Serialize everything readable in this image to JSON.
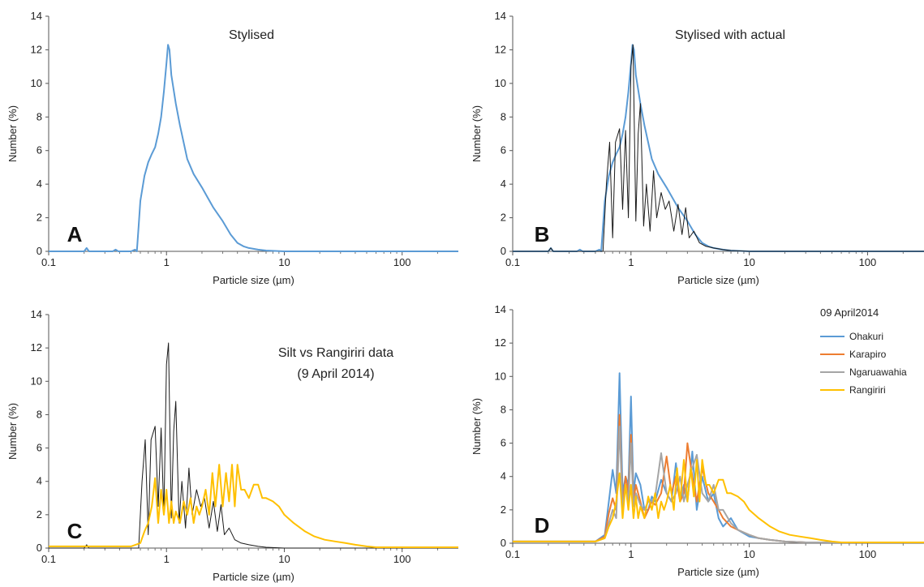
{
  "figure": {
    "title": ""
  },
  "colors": {
    "stylised": "#5b9bd5",
    "actual": "#1a1a1a",
    "ohakuri": "#5b9bd5",
    "karapiro": "#ed7d31",
    "ngaruawahia": "#a5a5a5",
    "rangiriri": "#ffc000"
  },
  "chart_data": [
    {
      "panel": "A",
      "type": "line",
      "title": "Stylised",
      "xlabel": "Particle size (µm)",
      "ylabel": "Number (%)",
      "xscale": "log",
      "xlim": [
        0.1,
        300
      ],
      "ylim": [
        0,
        14
      ],
      "xticks": [
        "0.1",
        "1",
        "10",
        "100"
      ],
      "yticks": [
        "0",
        "2",
        "4",
        "6",
        "8",
        "10",
        "12",
        "14"
      ],
      "legend": "none",
      "series": [
        {
          "color_key": "stylised",
          "x": [
            0.1,
            0.2,
            0.21,
            0.22,
            0.35,
            0.37,
            0.39,
            0.5,
            0.54,
            0.56,
            0.58,
            0.6,
            0.65,
            0.7,
            0.75,
            0.8,
            0.85,
            0.9,
            0.95,
            1.0,
            1.03,
            1.06,
            1.1,
            1.2,
            1.3,
            1.5,
            1.7,
            2.0,
            2.5,
            3.0,
            3.5,
            4.0,
            4.5,
            5.0,
            6.0,
            7.0,
            10,
            20,
            50,
            100,
            300
          ],
          "y": [
            0,
            0,
            0.2,
            0,
            0,
            0.1,
            0,
            0,
            0.1,
            0,
            1.5,
            3.0,
            4.5,
            5.3,
            5.8,
            6.2,
            7.0,
            8.0,
            9.5,
            11.2,
            12.3,
            12.0,
            10.5,
            8.8,
            7.5,
            5.5,
            4.6,
            3.8,
            2.6,
            1.8,
            1.0,
            0.5,
            0.3,
            0.2,
            0.1,
            0.05,
            0,
            0,
            0,
            0,
            0
          ]
        }
      ]
    },
    {
      "panel": "B",
      "type": "line",
      "title": "Stylised with actual",
      "xlabel": "Particle size (µm)",
      "ylabel": "Number (%)",
      "xscale": "log",
      "xlim": [
        0.1,
        300
      ],
      "ylim": [
        0,
        14
      ],
      "xticks": [
        "0.1",
        "1",
        "10",
        "100"
      ],
      "yticks": [
        "0",
        "2",
        "4",
        "6",
        "8",
        "10",
        "12",
        "14"
      ],
      "legend": "none",
      "series": [
        {
          "color_key": "stylised",
          "x": [
            0.1,
            0.2,
            0.21,
            0.22,
            0.35,
            0.37,
            0.39,
            0.5,
            0.54,
            0.56,
            0.58,
            0.6,
            0.65,
            0.7,
            0.75,
            0.8,
            0.85,
            0.9,
            0.95,
            1.0,
            1.03,
            1.06,
            1.1,
            1.2,
            1.3,
            1.5,
            1.7,
            2.0,
            2.5,
            3.0,
            3.5,
            4.0,
            4.5,
            5.0,
            6.0,
            7.0,
            10,
            20,
            50,
            100,
            300
          ],
          "y": [
            0,
            0,
            0.2,
            0,
            0,
            0.1,
            0,
            0,
            0.1,
            0,
            1.5,
            3.0,
            4.5,
            5.3,
            5.8,
            6.2,
            7.0,
            8.0,
            9.5,
            11.2,
            12.3,
            12.0,
            10.5,
            8.8,
            7.5,
            5.5,
            4.6,
            3.8,
            2.6,
            1.8,
            1.0,
            0.5,
            0.3,
            0.2,
            0.1,
            0.05,
            0,
            0,
            0,
            0,
            0
          ]
        },
        {
          "color_key": "actual",
          "x": [
            0.1,
            0.2,
            0.21,
            0.22,
            0.5,
            0.58,
            0.62,
            0.66,
            0.7,
            0.74,
            0.8,
            0.85,
            0.9,
            0.95,
            1.0,
            1.04,
            1.1,
            1.15,
            1.2,
            1.28,
            1.35,
            1.45,
            1.55,
            1.65,
            1.8,
            1.95,
            2.1,
            2.3,
            2.5,
            2.7,
            2.9,
            3.1,
            3.4,
            3.8,
            4.3,
            5.0,
            6.0,
            7.0,
            10,
            300
          ],
          "y": [
            0,
            0,
            0.2,
            0,
            0,
            0,
            4.0,
            6.5,
            0.8,
            6.5,
            7.3,
            2.5,
            7.2,
            2.0,
            11.0,
            12.3,
            1.8,
            7.0,
            8.8,
            1.5,
            4.0,
            1.2,
            4.8,
            2.0,
            3.5,
            2.5,
            3.0,
            1.2,
            2.8,
            1.0,
            2.6,
            0.8,
            1.2,
            0.5,
            0.3,
            0.2,
            0.1,
            0.05,
            0,
            0
          ]
        }
      ]
    },
    {
      "panel": "C",
      "type": "line",
      "title": "Silt vs Rangiriri data",
      "subtitle": "(9 April 2014)",
      "xlabel": "Particle size (µm)",
      "ylabel": "Number (%)",
      "xscale": "log",
      "xlim": [
        0.1,
        300
      ],
      "ylim": [
        0,
        14
      ],
      "xticks": [
        "0.1",
        "1",
        "10",
        "100"
      ],
      "yticks": [
        "0",
        "2",
        "4",
        "6",
        "8",
        "10",
        "12",
        "14"
      ],
      "legend": "none",
      "series": [
        {
          "color_key": "actual",
          "x": [
            0.1,
            0.2,
            0.21,
            0.22,
            0.5,
            0.58,
            0.62,
            0.66,
            0.7,
            0.74,
            0.8,
            0.85,
            0.9,
            0.95,
            1.0,
            1.04,
            1.1,
            1.15,
            1.2,
            1.28,
            1.35,
            1.45,
            1.55,
            1.65,
            1.8,
            1.95,
            2.1,
            2.3,
            2.5,
            2.7,
            2.9,
            3.1,
            3.4,
            3.8,
            4.3,
            5.0,
            6.0,
            7.0,
            10,
            300
          ],
          "y": [
            0,
            0,
            0.2,
            0,
            0,
            0,
            4.0,
            6.5,
            0.8,
            6.5,
            7.3,
            2.5,
            7.2,
            2.0,
            11.0,
            12.3,
            1.8,
            7.0,
            8.8,
            1.5,
            4.0,
            1.2,
            4.8,
            2.0,
            3.5,
            2.5,
            3.0,
            1.2,
            2.8,
            1.0,
            2.6,
            0.8,
            1.2,
            0.5,
            0.3,
            0.2,
            0.1,
            0.05,
            0,
            0
          ]
        },
        {
          "color_key": "rangiriri",
          "x": [
            0.1,
            0.5,
            0.6,
            0.65,
            0.7,
            0.75,
            0.8,
            0.85,
            0.9,
            0.95,
            1.0,
            1.05,
            1.1,
            1.15,
            1.2,
            1.3,
            1.4,
            1.5,
            1.6,
            1.7,
            1.8,
            1.9,
            2.0,
            2.15,
            2.3,
            2.45,
            2.6,
            2.8,
            3.0,
            3.2,
            3.4,
            3.6,
            3.8,
            4.0,
            4.3,
            4.6,
            5.0,
            5.5,
            6.0,
            6.5,
            7.0,
            8.0,
            9.0,
            10,
            12,
            15,
            18,
            22,
            27,
            33,
            40,
            50,
            60,
            100,
            300
          ],
          "y": [
            0.1,
            0.1,
            0.3,
            1.0,
            1.5,
            2.5,
            4.2,
            1.5,
            3.5,
            2.0,
            3.5,
            1.5,
            2.8,
            1.5,
            2.2,
            1.5,
            2.8,
            2.0,
            3.0,
            1.5,
            2.5,
            2.0,
            2.5,
            3.5,
            2.0,
            4.5,
            2.5,
            5.0,
            2.5,
            4.5,
            2.8,
            5.0,
            2.5,
            5.0,
            3.5,
            3.5,
            3.0,
            3.8,
            3.8,
            3.0,
            3.0,
            2.8,
            2.5,
            2.0,
            1.5,
            1.0,
            0.7,
            0.5,
            0.4,
            0.3,
            0.2,
            0.1,
            0.05,
            0.05,
            0.05
          ]
        }
      ]
    },
    {
      "panel": "D",
      "type": "line",
      "title": "",
      "xlabel": "Particle size (µm)",
      "ylabel": "Number  (%)",
      "xscale": "log",
      "xlim": [
        0.1,
        300
      ],
      "ylim": [
        0,
        14
      ],
      "xticks": [
        "0.1",
        "1",
        "10",
        "100"
      ],
      "yticks": [
        "0",
        "2",
        "4",
        "6",
        "8",
        "10",
        "12",
        "14"
      ],
      "legend": "top-right",
      "legend_title": "09 April2014",
      "series": [
        {
          "name": "Ohakuri",
          "color_key": "ohakuri",
          "x": [
            0.1,
            0.5,
            0.6,
            0.65,
            0.7,
            0.75,
            0.8,
            0.85,
            0.9,
            0.95,
            1.0,
            1.05,
            1.1,
            1.2,
            1.3,
            1.4,
            1.5,
            1.6,
            1.8,
            2.0,
            2.2,
            2.4,
            2.6,
            2.8,
            3.0,
            3.3,
            3.6,
            4.0,
            4.5,
            5.0,
            5.5,
            6.0,
            7.0,
            8.0,
            10,
            12,
            15,
            20,
            30,
            50,
            100,
            300
          ],
          "y": [
            0.1,
            0.1,
            0.5,
            2.5,
            4.4,
            3.0,
            10.2,
            3.0,
            4.0,
            3.5,
            8.8,
            3.0,
            4.2,
            3.5,
            2.0,
            2.0,
            2.8,
            2.5,
            3.8,
            3.0,
            2.5,
            4.8,
            2.5,
            3.5,
            2.5,
            5.5,
            2.0,
            4.0,
            2.5,
            3.0,
            1.5,
            1.0,
            1.5,
            0.8,
            0.4,
            0.3,
            0.2,
            0.1,
            0.05,
            0.05,
            0.05,
            0.05
          ]
        },
        {
          "name": "Karapiro",
          "color_key": "karapiro",
          "x": [
            0.1,
            0.5,
            0.6,
            0.65,
            0.7,
            0.75,
            0.8,
            0.85,
            0.9,
            0.95,
            1.0,
            1.05,
            1.1,
            1.2,
            1.3,
            1.4,
            1.5,
            1.6,
            1.8,
            2.0,
            2.2,
            2.4,
            2.6,
            2.8,
            3.0,
            3.3,
            3.6,
            4.0,
            4.5,
            5.0,
            5.5,
            6.0,
            7.0,
            8.0,
            10,
            12,
            15,
            20,
            30,
            50,
            100,
            300
          ],
          "y": [
            0.1,
            0.1,
            0.4,
            1.8,
            2.7,
            2.0,
            7.7,
            2.2,
            4.0,
            3.0,
            6.5,
            2.5,
            3.5,
            2.5,
            1.5,
            2.0,
            2.5,
            2.3,
            3.0,
            5.2,
            3.0,
            4.0,
            2.5,
            3.0,
            6.0,
            4.0,
            2.5,
            4.5,
            3.0,
            2.5,
            2.0,
            1.5,
            1.0,
            0.8,
            0.5,
            0.3,
            0.2,
            0.1,
            0.05,
            0.05,
            0.05,
            0.05
          ]
        },
        {
          "name": "Ngaruawahia",
          "color_key": "ngaruawahia",
          "x": [
            0.1,
            0.5,
            0.6,
            0.65,
            0.7,
            0.75,
            0.8,
            0.85,
            0.9,
            0.95,
            1.0,
            1.05,
            1.1,
            1.2,
            1.3,
            1.4,
            1.5,
            1.6,
            1.8,
            2.0,
            2.2,
            2.4,
            2.6,
            2.8,
            3.0,
            3.3,
            3.6,
            4.0,
            4.5,
            5.0,
            5.5,
            6.0,
            7.0,
            8.0,
            10,
            12,
            15,
            20,
            30,
            50,
            100,
            300
          ],
          "y": [
            0.1,
            0.1,
            0.3,
            1.2,
            2.0,
            1.5,
            7.0,
            2.0,
            3.5,
            2.5,
            6.0,
            2.2,
            3.0,
            2.3,
            2.0,
            2.5,
            2.5,
            2.8,
            5.4,
            3.0,
            2.5,
            3.0,
            4.0,
            2.5,
            3.5,
            4.5,
            5.3,
            3.0,
            2.5,
            3.5,
            2.0,
            2.0,
            1.2,
            0.8,
            0.5,
            0.3,
            0.2,
            0.1,
            0.05,
            0.05,
            0.05,
            0.05
          ]
        },
        {
          "name": "Rangiriri",
          "color_key": "rangiriri",
          "x": [
            0.1,
            0.5,
            0.6,
            0.65,
            0.7,
            0.75,
            0.8,
            0.85,
            0.9,
            0.95,
            1.0,
            1.05,
            1.1,
            1.15,
            1.2,
            1.3,
            1.4,
            1.5,
            1.6,
            1.7,
            1.8,
            1.9,
            2.0,
            2.15,
            2.3,
            2.45,
            2.6,
            2.8,
            3.0,
            3.2,
            3.4,
            3.6,
            3.8,
            4.0,
            4.3,
            4.6,
            5.0,
            5.5,
            6.0,
            6.5,
            7.0,
            8.0,
            9.0,
            10,
            12,
            15,
            18,
            22,
            27,
            33,
            40,
            50,
            60,
            100,
            300
          ],
          "y": [
            0.1,
            0.1,
            0.3,
            1.0,
            1.5,
            2.5,
            4.2,
            1.5,
            3.5,
            2.0,
            3.5,
            1.5,
            2.8,
            1.5,
            2.2,
            1.5,
            2.8,
            2.0,
            3.0,
            1.5,
            2.5,
            2.0,
            2.5,
            3.5,
            2.0,
            4.5,
            2.5,
            5.0,
            2.5,
            4.5,
            2.8,
            5.0,
            2.5,
            5.0,
            3.5,
            3.5,
            3.0,
            3.8,
            3.8,
            3.0,
            3.0,
            2.8,
            2.5,
            2.0,
            1.5,
            1.0,
            0.7,
            0.5,
            0.4,
            0.3,
            0.2,
            0.1,
            0.05,
            0.05,
            0.05
          ]
        }
      ]
    }
  ]
}
